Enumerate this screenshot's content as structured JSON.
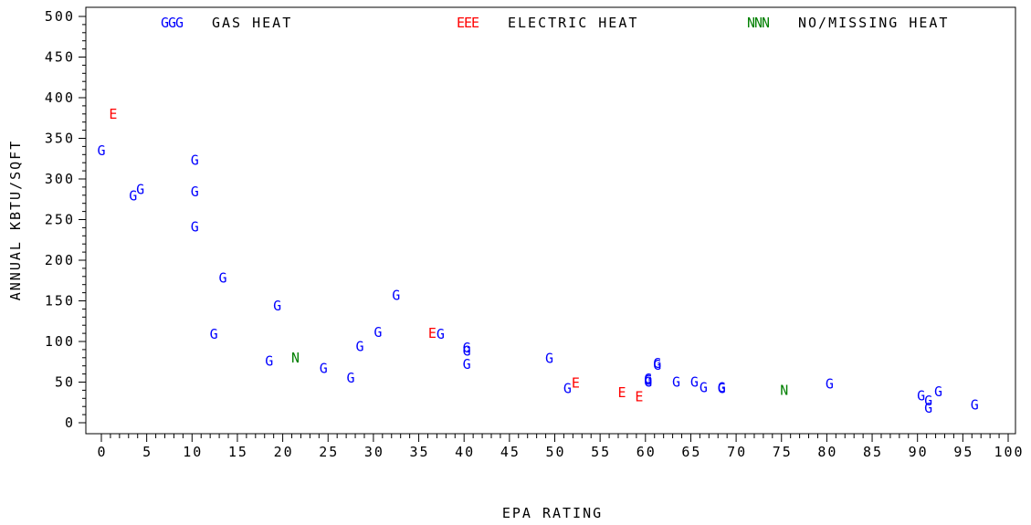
{
  "chart_data": {
    "type": "scatter",
    "xlabel": "EPA RATING",
    "ylabel": "ANNUAL KBTU/SQFT",
    "xlim": [
      0,
      100
    ],
    "ylim": [
      0,
      500
    ],
    "xticks": [
      0,
      5,
      10,
      15,
      20,
      25,
      30,
      35,
      40,
      45,
      50,
      55,
      60,
      65,
      70,
      75,
      80,
      85,
      90,
      95,
      100
    ],
    "yticks": [
      0,
      50,
      100,
      150,
      200,
      250,
      300,
      350,
      400,
      450,
      500
    ],
    "grid": false,
    "legend_position": "top",
    "series": [
      {
        "name": "GAS HEAT",
        "symbol": "G",
        "legend_symbol": "GGG",
        "color": "#0000ff",
        "points": [
          [
            0,
            335
          ],
          [
            3.5,
            279
          ],
          [
            4.3,
            287
          ],
          [
            10.3,
            323
          ],
          [
            10.3,
            284
          ],
          [
            10.3,
            241
          ],
          [
            12.4,
            109
          ],
          [
            13.4,
            178
          ],
          [
            18.5,
            76
          ],
          [
            19.4,
            144
          ],
          [
            24.5,
            67
          ],
          [
            27.5,
            55
          ],
          [
            28.5,
            94
          ],
          [
            30.5,
            111
          ],
          [
            32.5,
            157
          ],
          [
            37.4,
            109
          ],
          [
            40.3,
            92
          ],
          [
            40.3,
            88
          ],
          [
            40.3,
            72
          ],
          [
            49.4,
            79
          ],
          [
            51.4,
            42
          ],
          [
            60.3,
            54
          ],
          [
            60.3,
            52
          ],
          [
            60.3,
            50
          ],
          [
            61.3,
            73
          ],
          [
            61.3,
            71
          ],
          [
            63.4,
            50
          ],
          [
            65.4,
            50
          ],
          [
            66.4,
            43
          ],
          [
            68.4,
            43
          ],
          [
            68.4,
            42
          ],
          [
            80.3,
            48
          ],
          [
            90.4,
            33
          ],
          [
            91.2,
            27
          ],
          [
            91.2,
            18
          ],
          [
            92.3,
            38
          ],
          [
            96.3,
            22
          ]
        ]
      },
      {
        "name": "ELECTRIC HEAT",
        "symbol": "E",
        "legend_symbol": "EEE",
        "color": "#ff0000",
        "points": [
          [
            1.3,
            380
          ],
          [
            36.5,
            110
          ],
          [
            52.3,
            49
          ],
          [
            57.4,
            37
          ],
          [
            59.3,
            32
          ]
        ]
      },
      {
        "name": "NO/MISSING HEAT",
        "symbol": "N",
        "legend_symbol": "NNN",
        "color": "#008000",
        "points": [
          [
            21.4,
            80
          ],
          [
            75.3,
            40
          ]
        ]
      }
    ]
  }
}
